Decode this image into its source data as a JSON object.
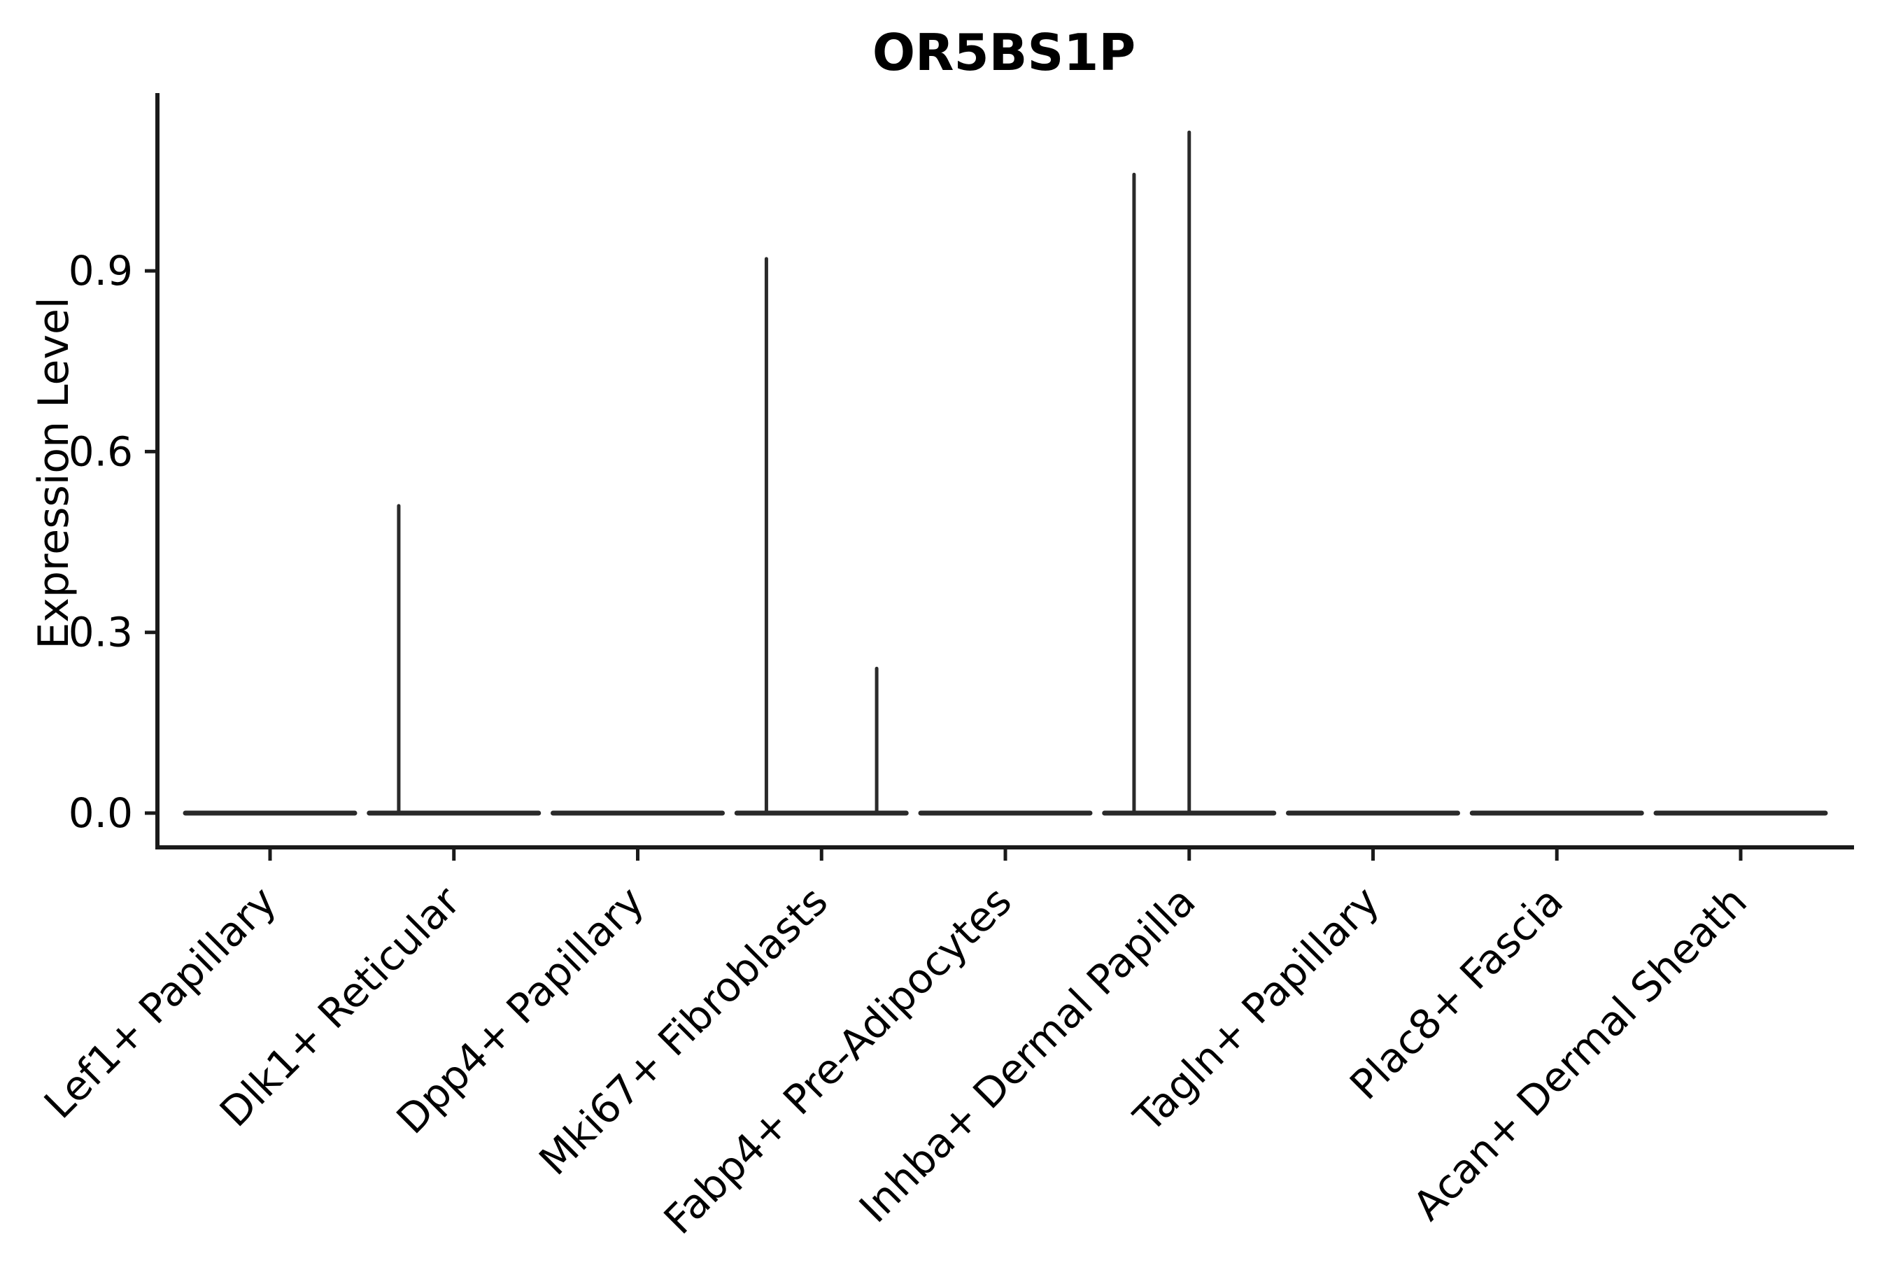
{
  "figure": {
    "title": "OR5BS1P"
  },
  "chart_data": {
    "type": "violin",
    "title": "OR5BS1P",
    "xlabel": "",
    "ylabel": "Expression Level",
    "categories": [
      "Lef1+ Papillary",
      "Dlk1+ Reticular",
      "Dpp4+ Papillary",
      "Mki67+ Fibroblasts",
      "Fabp4+ Pre-Adipocytes",
      "Inhba+ Dermal Papilla",
      "Tagln+ Papillary",
      "Plac8+ Fascia",
      "Acan+ Dermal Sheath"
    ],
    "y_ticks": [
      {
        "value": 0.0,
        "label": "0.0"
      },
      {
        "value": 0.3,
        "label": "0.3"
      },
      {
        "value": 0.6,
        "label": "0.6"
      },
      {
        "value": 0.9,
        "label": "0.9"
      }
    ],
    "ylim": [
      -0.06,
      1.2
    ],
    "x_tick_rotation_deg": 45,
    "grid": false,
    "legend": "none",
    "style_note": "Seurat-style violin plot; near-zero expression collapses each violin to a flat black line at 0, with thin vertical spikes for rare expressing cells",
    "violin_body_width_fraction": 0.92,
    "violins": [
      {
        "category": "Lef1+ Papillary",
        "baseline_at_zero": true,
        "spikes": []
      },
      {
        "category": "Dlk1+ Reticular",
        "baseline_at_zero": true,
        "spikes": [
          {
            "x_offset": -0.3,
            "max_expression": 0.51
          }
        ]
      },
      {
        "category": "Dpp4+ Papillary",
        "baseline_at_zero": true,
        "spikes": []
      },
      {
        "category": "Mki67+ Fibroblasts",
        "baseline_at_zero": true,
        "spikes": [
          {
            "x_offset": -0.3,
            "max_expression": 0.92
          },
          {
            "x_offset": 0.3,
            "max_expression": 0.24
          }
        ]
      },
      {
        "category": "Fabp4+ Pre-Adipocytes",
        "baseline_at_zero": true,
        "spikes": []
      },
      {
        "category": "Inhba+ Dermal Papilla",
        "baseline_at_zero": true,
        "spikes": [
          {
            "x_offset": -0.3,
            "max_expression": 1.06
          },
          {
            "x_offset": 0.0,
            "max_expression": 1.13
          }
        ]
      },
      {
        "category": "Tagln+ Papillary",
        "baseline_at_zero": true,
        "spikes": []
      },
      {
        "category": "Plac8+ Fascia",
        "baseline_at_zero": true,
        "spikes": []
      },
      {
        "category": "Acan+ Dermal Sheath",
        "baseline_at_zero": true,
        "spikes": []
      }
    ],
    "colors": {
      "background": "#ffffff",
      "axis": "#1a1a1a",
      "violin_stroke": "#2a2a2a",
      "text": "#000000"
    }
  }
}
